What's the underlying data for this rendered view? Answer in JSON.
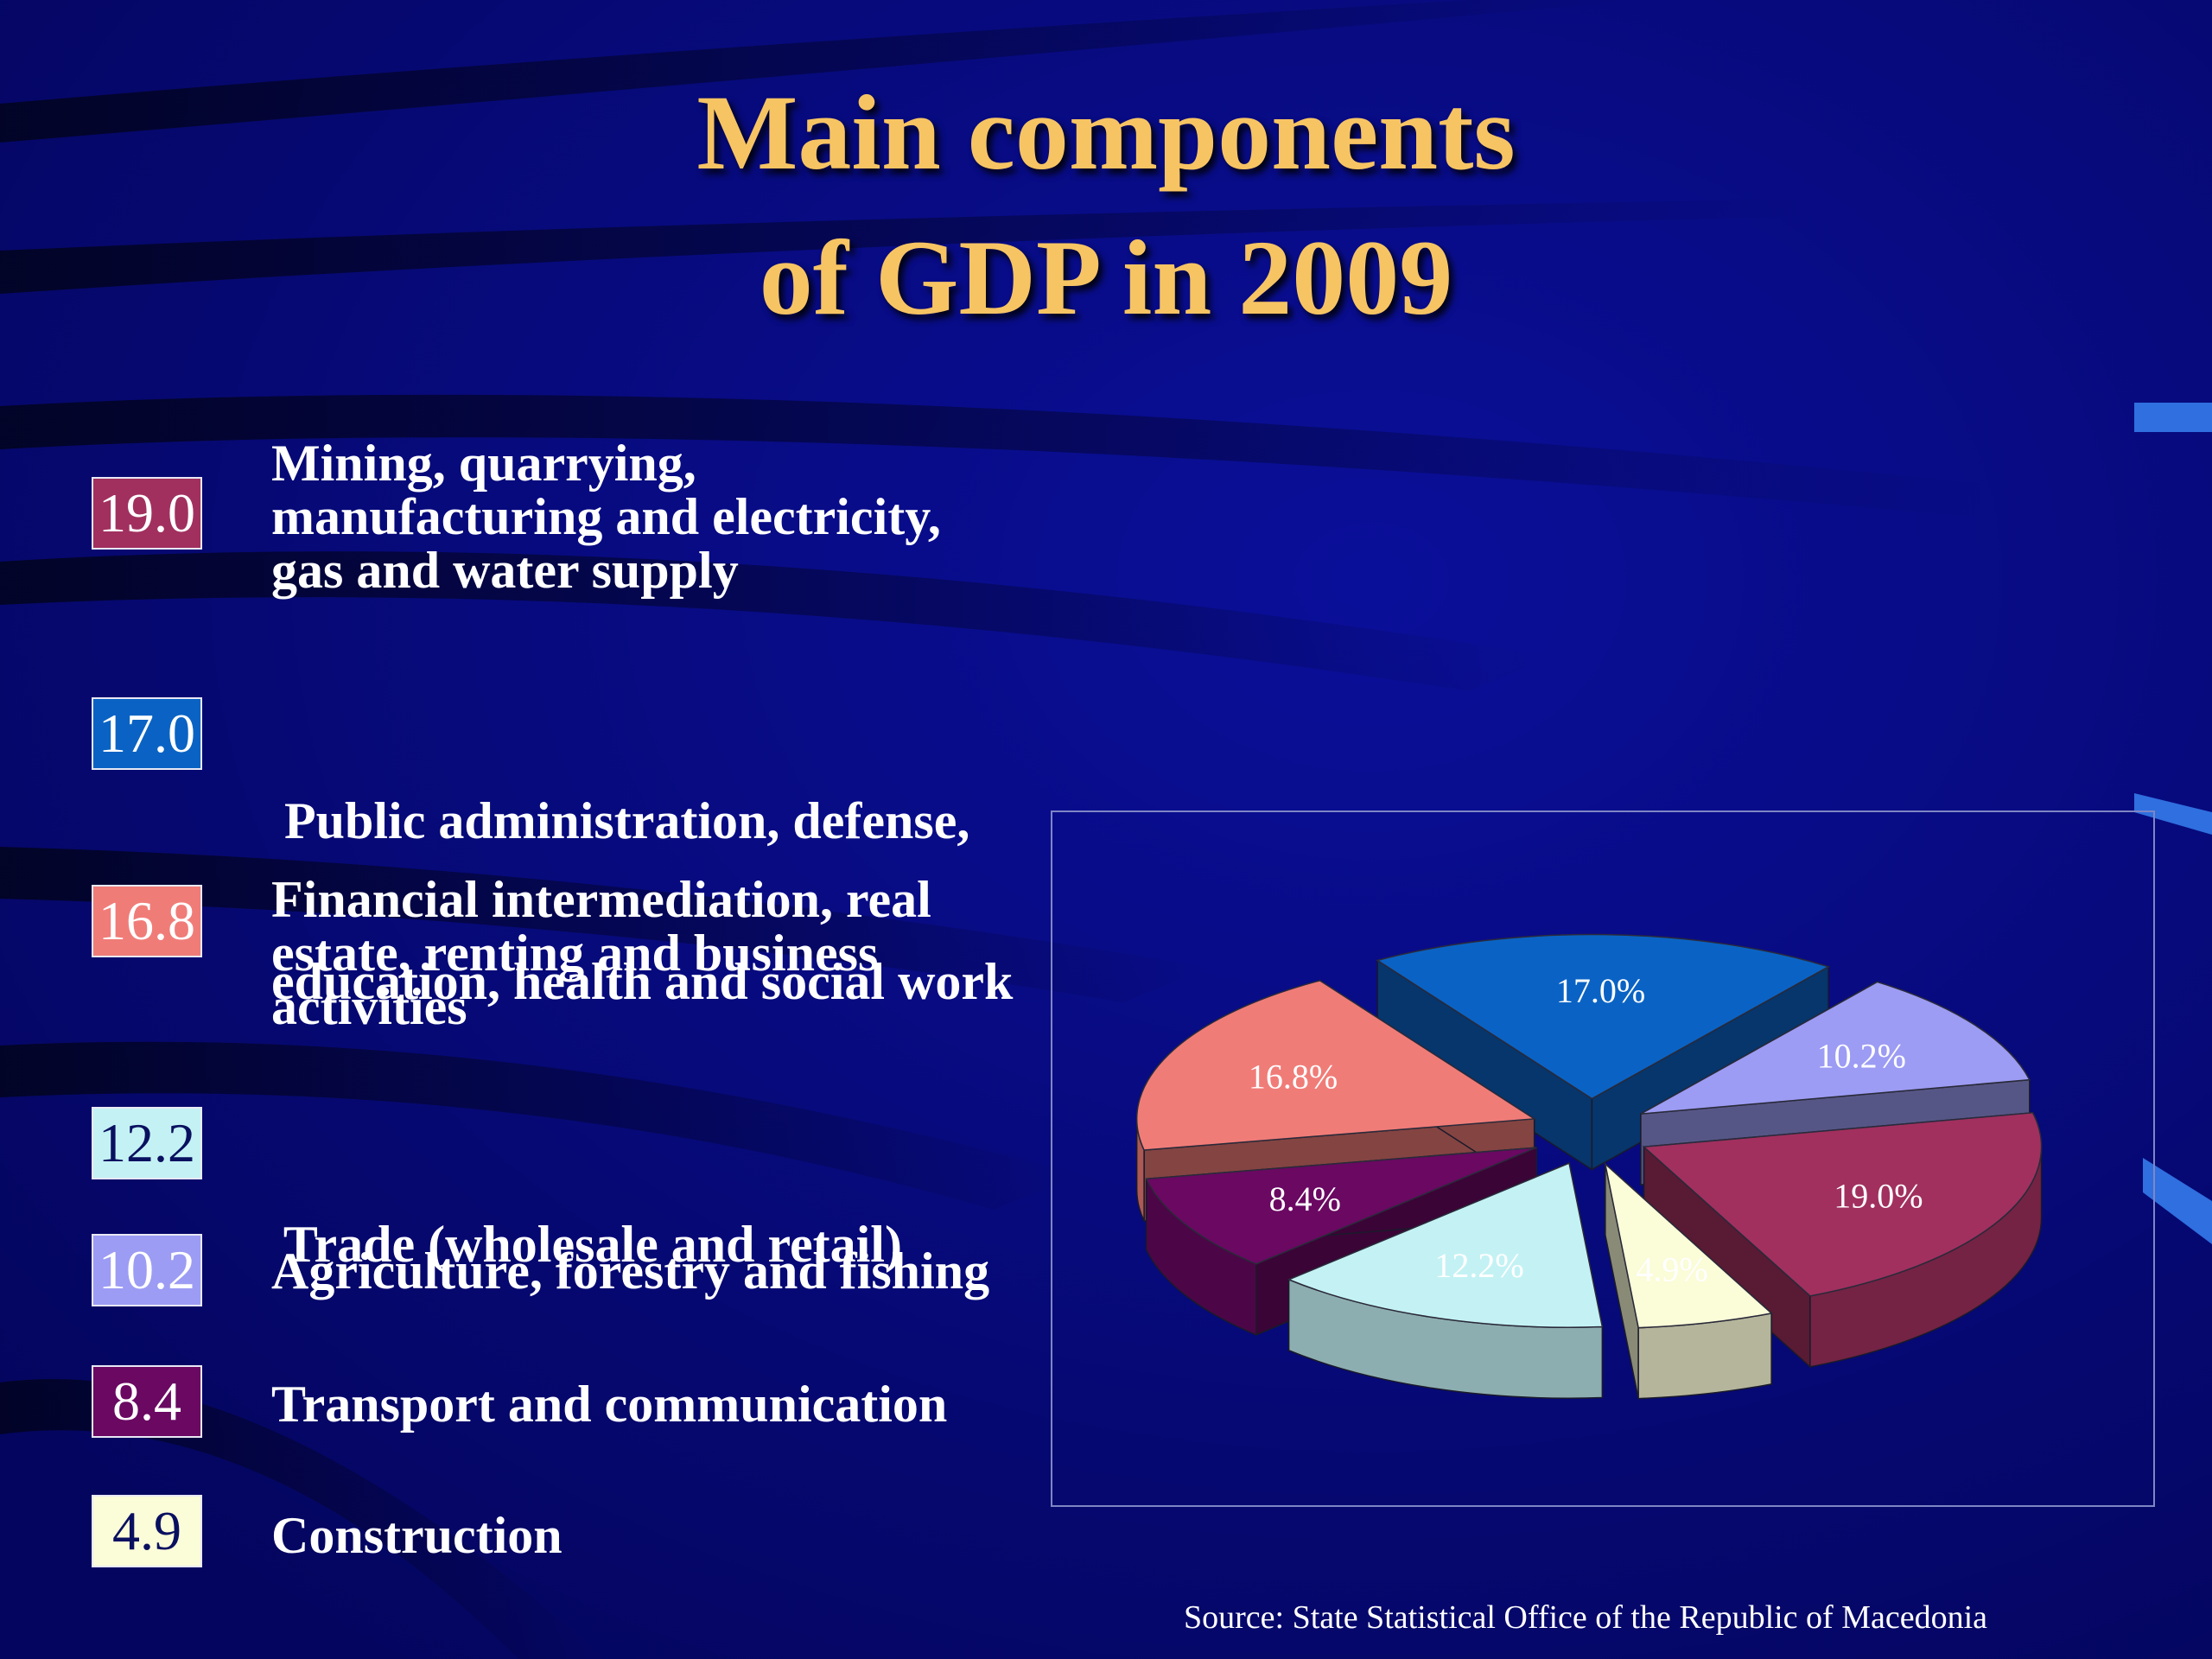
{
  "title_lines": [
    "Main components",
    "of GDP in 2009"
  ],
  "source": "Source: State Statistical Office of the Republic of Macedonia",
  "colors": {
    "background": "#05066e",
    "title": "#f7c463"
  },
  "chart_data": {
    "type": "pie",
    "title": "Main components of GDP in 2009",
    "unit": "%",
    "slices": [
      {
        "label": "Mining, quarrying, manufacturing and electricity, gas and water supply",
        "value": 19.0,
        "data_label": "19.0%",
        "color": "#a1305f",
        "text_color": "#ffffff"
      },
      {
        "label": "Public administration, defense, education, health and social work",
        "value": 17.0,
        "data_label": "17.0%",
        "color": "#0a63c4",
        "text_color": "#ffffff"
      },
      {
        "label": "Financial intermediation, real estate, renting and business activities",
        "value": 16.8,
        "data_label": "16.8%",
        "color": "#f07c78",
        "text_color": "#ffffff"
      },
      {
        "label": "Trade (wholesale and retail)",
        "value": 12.2,
        "data_label": "12.2%",
        "color": "#c4f2f4",
        "text_color": "#ffffff"
      },
      {
        "label": "Agriculture, forestry and fishing",
        "value": 10.2,
        "data_label": "10.2%",
        "color": "#9c9cf4",
        "text_color": "#ffffff"
      },
      {
        "label": "Transport and communication",
        "value": 8.4,
        "data_label": "8.4%",
        "color": "#6a0862",
        "text_color": "#ffffff"
      },
      {
        "label": "Construction",
        "value": 4.9,
        "data_label": "4.9%",
        "color": "#fbfcd8",
        "text_color": "#ffffff"
      }
    ]
  },
  "legend": [
    {
      "value": "19.0",
      "lines": [
        "Mining, quarrying,",
        "manufacturing and electricity,",
        "gas and water supply"
      ],
      "box_color": "#a1305f",
      "value_color": "#ffffff"
    },
    {
      "value": "17.0",
      "lines": [
        " Public administration, defense,",
        "education, health and social work"
      ],
      "box_color": "#0a63c4",
      "value_color": "#ffffff"
    },
    {
      "value": "16.8",
      "lines": [
        "Financial intermediation, real",
        "estate, renting and business",
        "activities"
      ],
      "box_color": "#f07c78",
      "value_color": "#ffffff"
    },
    {
      "value": "12.2",
      "lines": [
        " Trade (wholesale and retail)"
      ],
      "box_color": "#c4f2f4",
      "value_color": "#0a1060"
    },
    {
      "value": "10.2",
      "lines": [
        "Agriculture, forestry and fishing"
      ],
      "box_color": "#9c9cf4",
      "value_color": "#ffffff"
    },
    {
      "value": "8.4",
      "lines": [
        "Transport and communication"
      ],
      "box_color": "#6a0862",
      "value_color": "#ffffff"
    },
    {
      "value": "4.9",
      "lines": [
        "Construction"
      ],
      "box_color": "#fbfcd8",
      "value_color": "#0a1060"
    }
  ]
}
